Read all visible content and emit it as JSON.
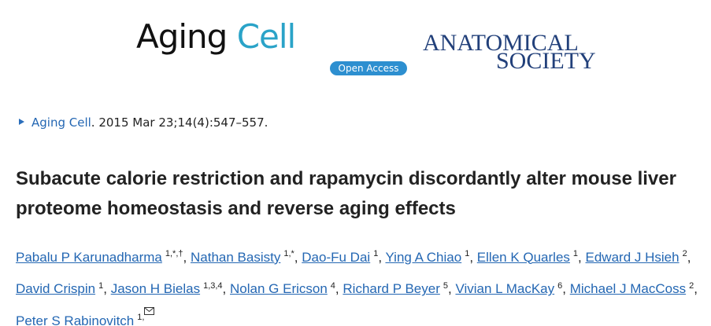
{
  "header": {
    "journal_logo": {
      "name_part1": "Aging",
      "name_part2": "Cell",
      "badge": "Open Access"
    },
    "society_logo": {
      "line1": "ANATOMICAL",
      "line2": "SOCIETY"
    }
  },
  "citation": {
    "journal": "Aging Cell",
    "details": ". 2015 Mar 23;14(4):547–557."
  },
  "article": {
    "title": "Subacute calorie restriction and rapamycin discordantly alter mouse liver proteome homeostasis and reverse aging effects",
    "author_separator": ",",
    "authors": [
      {
        "name": "Pabalu P Karunadharma",
        "affiliations": "1,*,†"
      },
      {
        "name": "Nathan Basisty",
        "affiliations": "1,*"
      },
      {
        "name": "Dao-Fu Dai",
        "affiliations": "1"
      },
      {
        "name": "Ying A Chiao",
        "affiliations": "1"
      },
      {
        "name": "Ellen K Quarles",
        "affiliations": "1"
      },
      {
        "name": "Edward J Hsieh",
        "affiliations": "2"
      },
      {
        "name": "David Crispin",
        "affiliations": "1"
      },
      {
        "name": "Jason H Bielas",
        "affiliations": "1,3,4"
      },
      {
        "name": "Nolan G Ericson",
        "affiliations": "4"
      },
      {
        "name": "Richard P Beyer",
        "affiliations": "5"
      },
      {
        "name": "Vivian L MacKay",
        "affiliations": "6"
      },
      {
        "name": "Michael J MacCoss",
        "affiliations": "2"
      },
      {
        "name": "Peter S Rabinovitch",
        "affiliations": "1,"
      }
    ]
  }
}
